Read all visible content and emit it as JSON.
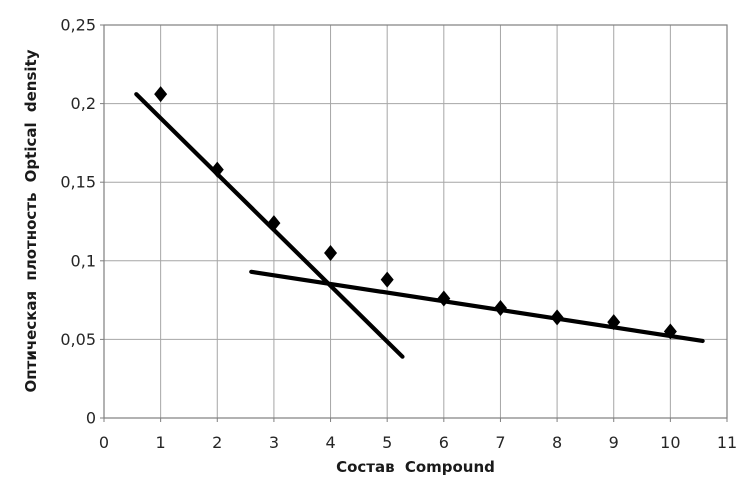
{
  "chart_data": {
    "type": "scatter",
    "xlabel": "Состав Compound",
    "ylabel": "Оптическая плотность  Optical density",
    "xlim": [
      0,
      11
    ],
    "ylim": [
      0,
      0.25
    ],
    "grid": true,
    "legend_position": "none",
    "x_ticks": [
      {
        "v": 0,
        "label": "0"
      },
      {
        "v": 1,
        "label": "1"
      },
      {
        "v": 2,
        "label": "2"
      },
      {
        "v": 3,
        "label": "3"
      },
      {
        "v": 4,
        "label": "4"
      },
      {
        "v": 5,
        "label": "5"
      },
      {
        "v": 6,
        "label": "6"
      },
      {
        "v": 7,
        "label": "7"
      },
      {
        "v": 8,
        "label": "8"
      },
      {
        "v": 9,
        "label": "9"
      },
      {
        "v": 10,
        "label": "10"
      },
      {
        "v": 11,
        "label": "11"
      }
    ],
    "y_ticks": [
      {
        "v": 0,
        "label": "0"
      },
      {
        "v": 0.05,
        "label": "0,05"
      },
      {
        "v": 0.1,
        "label": "0,1"
      },
      {
        "v": 0.15,
        "label": "0,15"
      },
      {
        "v": 0.2,
        "label": "0,2"
      },
      {
        "v": 0.25,
        "label": "0,25"
      }
    ],
    "series": [
      {
        "name": "optical-density-points",
        "kind": "scatter",
        "marker": "diamond",
        "x": [
          1,
          2,
          3,
          4,
          5,
          6,
          7,
          8,
          9,
          10
        ],
        "y": [
          0.206,
          0.158,
          0.124,
          0.105,
          0.088,
          0.076,
          0.07,
          0.064,
          0.061,
          0.055
        ]
      },
      {
        "name": "trendline-steep",
        "kind": "line",
        "x": [
          0.57,
          5.27
        ],
        "y": [
          0.206,
          0.039
        ]
      },
      {
        "name": "trendline-shallow",
        "kind": "line",
        "x": [
          2.6,
          10.57
        ],
        "y": [
          0.093,
          0.049
        ]
      }
    ],
    "colors": {
      "marker": "#000000",
      "line": "#000000",
      "grid": "#a6a6a6",
      "axis": "#7f7f7f",
      "text": "#262626"
    }
  }
}
